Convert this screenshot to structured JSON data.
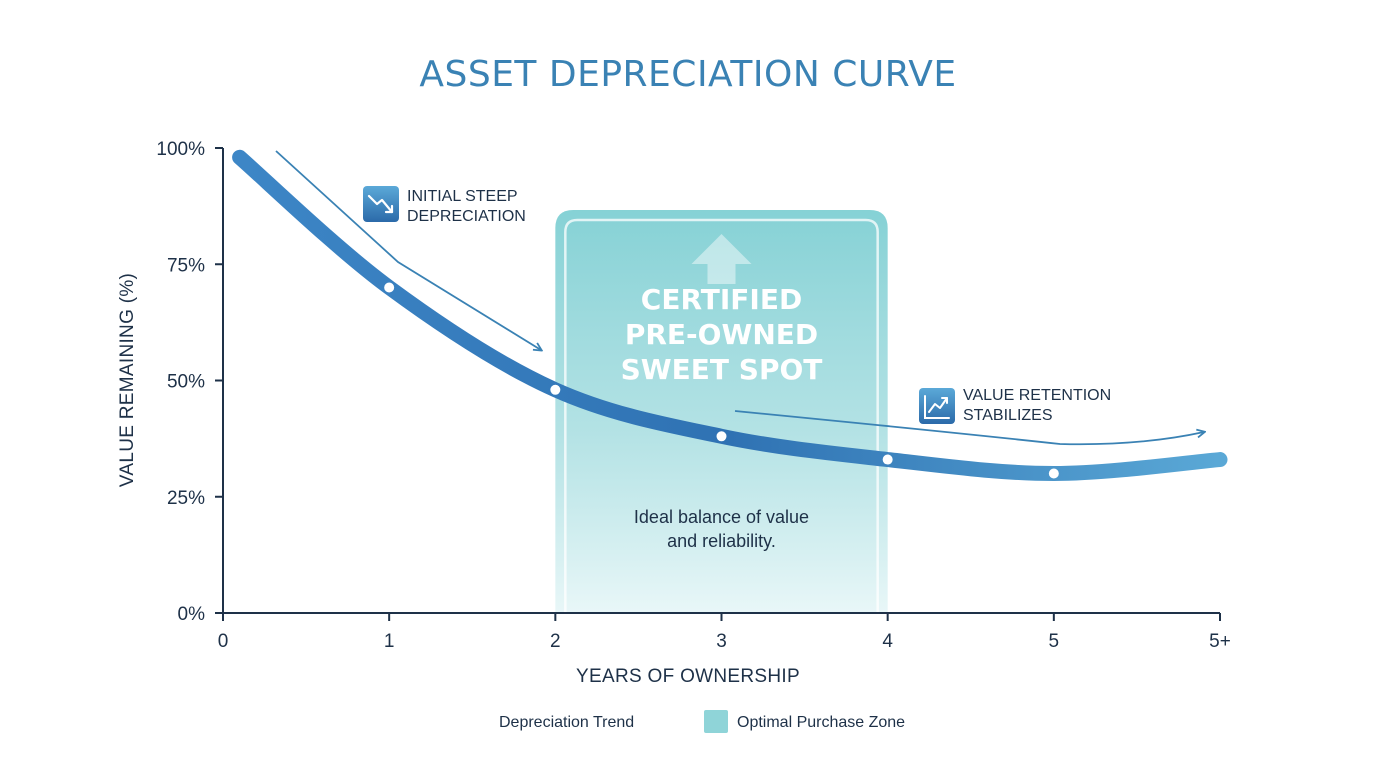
{
  "chart_data": {
    "type": "line",
    "title": "ASSET DEPRECIATION CURVE",
    "xlabel": "YEARS OF OWNERSHIP",
    "ylabel": "VALUE REMAINING (%)",
    "x_ticks": [
      "0",
      "1",
      "2",
      "3",
      "4",
      "5",
      "5+"
    ],
    "y_ticks": [
      "0%",
      "25%",
      "50%",
      "75%",
      "100%"
    ],
    "xlim": [
      0,
      6
    ],
    "ylim": [
      0,
      100
    ],
    "series": [
      {
        "name": "Depreciation Trend",
        "x": [
          0.1,
          1,
          2,
          3,
          4,
          5,
          6
        ],
        "y": [
          98,
          70,
          48,
          38,
          33,
          30,
          33
        ],
        "color": "#3a82bf"
      }
    ],
    "highlight_zone": {
      "name": "Optimal Purchase Zone",
      "x_range": [
        2,
        4
      ],
      "title_lines": [
        "CERTIFIED",
        "PRE-OWNED",
        "SWEET SPOT"
      ],
      "description_lines": [
        "Ideal balance of value",
        "and reliability."
      ],
      "color": "#7fcfd3"
    },
    "annotations": [
      {
        "lines": [
          "INITIAL STEEP",
          "DEPRECIATION"
        ],
        "icon": "trend-down-icon"
      },
      {
        "lines": [
          "VALUE RETENTION",
          "STABILIZES"
        ],
        "icon": "trend-up-icon"
      }
    ],
    "legend": {
      "placement": "bottom-center",
      "items": [
        "Depreciation Trend",
        "Optimal Purchase Zone"
      ]
    }
  }
}
